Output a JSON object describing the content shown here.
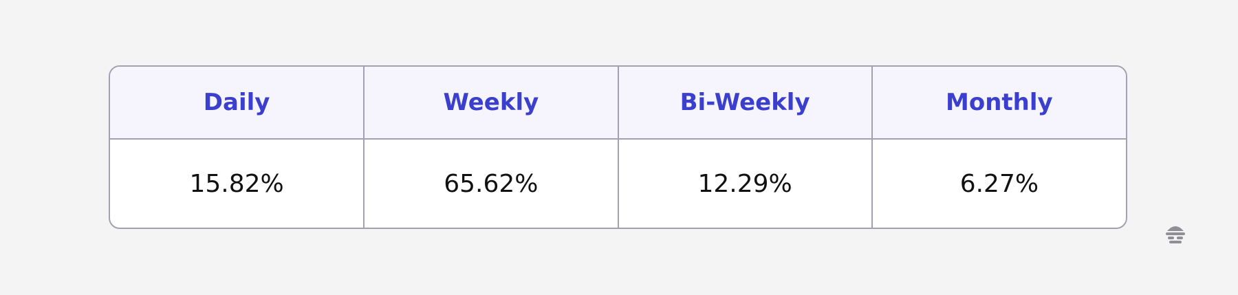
{
  "table": {
    "header": [
      "Daily",
      "Weekly",
      "Bi-Weekly",
      "Monthly"
    ],
    "rows": [
      [
        "15.82%",
        "65.62%",
        "12.29%",
        "6.27%"
      ]
    ]
  }
}
